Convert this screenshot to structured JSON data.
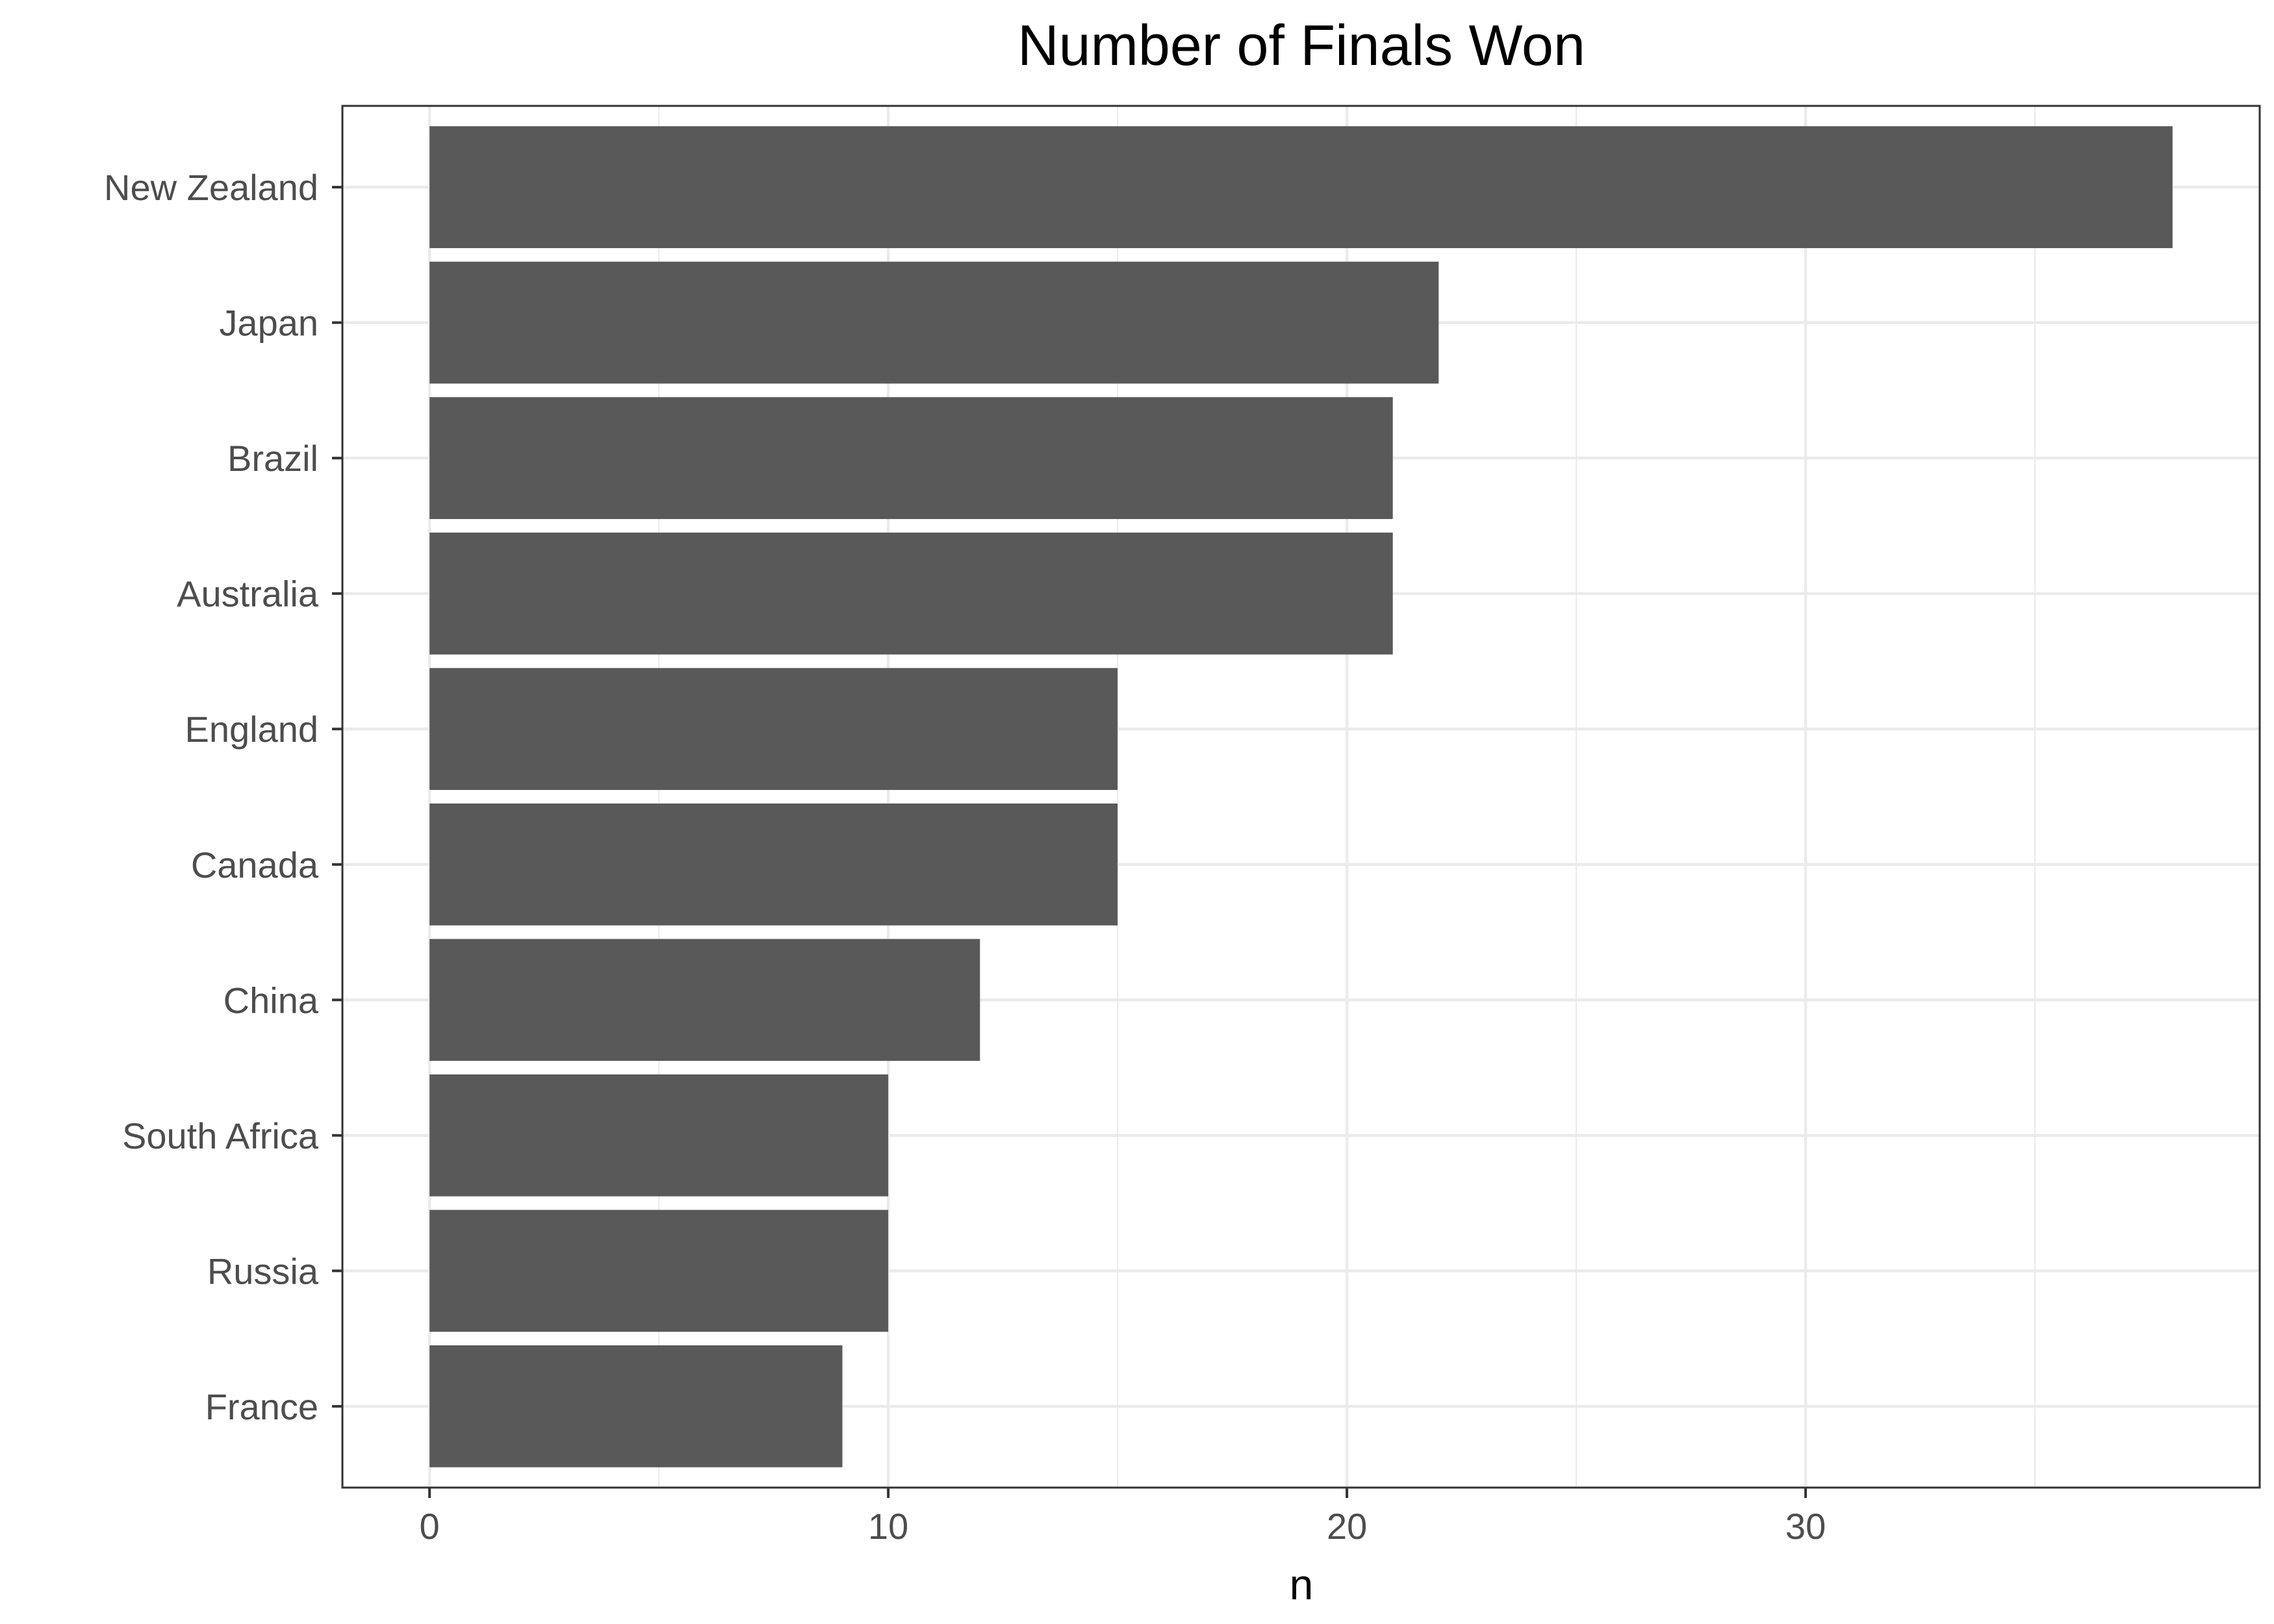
{
  "chart_data": {
    "type": "bar",
    "orientation": "horizontal",
    "title": "Number of Finals Won",
    "xlabel": "n",
    "ylabel": "",
    "categories": [
      "New Zealand",
      "Japan",
      "Brazil",
      "Australia",
      "England",
      "Canada",
      "China",
      "South Africa",
      "Russia",
      "France"
    ],
    "values": [
      38,
      22,
      21,
      21,
      15,
      15,
      12,
      10,
      10,
      9
    ],
    "xlim": [
      -1.9,
      39.9
    ],
    "xticks": [
      0,
      10,
      20,
      30
    ],
    "xtick_labels": [
      "0",
      "10",
      "20",
      "30"
    ],
    "grid": true,
    "bar_color": "#595959",
    "grid_color": "#ebebeb",
    "panel_border_color": "#333333",
    "tick_label_color": "#4d4d4d"
  }
}
